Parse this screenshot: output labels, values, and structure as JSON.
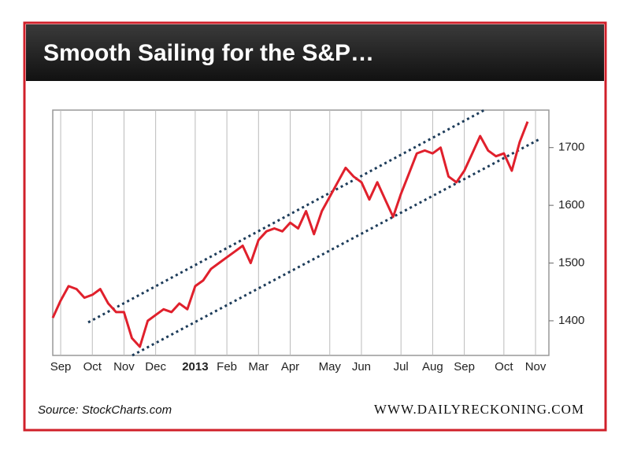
{
  "header": {
    "title": "Smooth Sailing for the S&P…"
  },
  "chart_data": {
    "type": "line",
    "categories": [
      null,
      "Sep",
      null,
      null,
      null,
      "Oct",
      null,
      null,
      null,
      "Nov",
      null,
      null,
      null,
      "Dec",
      null,
      null,
      null,
      null,
      "2013",
      null,
      null,
      null,
      "Feb",
      null,
      null,
      null,
      "Mar",
      null,
      null,
      null,
      "Apr",
      null,
      null,
      null,
      null,
      "May",
      null,
      null,
      null,
      "Jun",
      null,
      null,
      null,
      null,
      "Jul",
      null,
      null,
      null,
      "Aug",
      null,
      null,
      null,
      "Sep",
      null,
      null,
      null,
      null,
      "Oct",
      null,
      null,
      null,
      "Nov"
    ],
    "values": [
      1405,
      1435,
      1460,
      1455,
      1440,
      1445,
      1455,
      1430,
      1415,
      1415,
      1370,
      1355,
      1400,
      1410,
      1420,
      1415,
      1430,
      1420,
      1460,
      1470,
      1490,
      1500,
      1510,
      1520,
      1530,
      1500,
      1540,
      1555,
      1560,
      1555,
      1570,
      1560,
      1590,
      1550,
      1590,
      1615,
      1640,
      1665,
      1650,
      1640,
      1610,
      1640,
      1610,
      1580,
      1620,
      1655,
      1690,
      1695,
      1690,
      1700,
      1650,
      1640,
      1660,
      1690,
      1720,
      1695,
      1685,
      1690,
      1660,
      1710,
      1745,
      null
    ],
    "color": "#e0202c",
    "ylim": [
      1340,
      1765
    ],
    "yticks": [
      1400,
      1500,
      1600,
      1700
    ],
    "grid": true
  },
  "footer": {
    "source": "Source: StockCharts.com",
    "site": "WWW.DAILYRECKONING.COM"
  }
}
